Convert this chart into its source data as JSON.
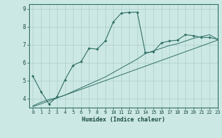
{
  "xlabel": "Humidex (Indice chaleur)",
  "background_color": "#cce8e4",
  "line_color": "#2e6e64",
  "grid_color": "#aacccc",
  "line1_x": [
    0,
    1,
    2,
    3,
    4,
    5,
    6,
    7,
    8,
    9,
    10,
    11,
    12,
    13,
    14,
    15,
    16,
    17,
    18,
    19,
    20,
    21,
    22,
    23
  ],
  "line1_y": [
    5.25,
    4.4,
    3.7,
    4.1,
    5.05,
    5.85,
    6.05,
    6.8,
    6.75,
    7.2,
    8.25,
    8.75,
    8.8,
    8.8,
    6.55,
    6.6,
    7.1,
    7.2,
    7.25,
    7.55,
    7.5,
    7.4,
    7.4,
    7.3
  ],
  "line2_x": [
    0,
    1,
    2,
    3,
    4,
    5,
    6,
    7,
    8,
    9,
    10,
    11,
    12,
    13,
    14,
    15,
    16,
    17,
    18,
    19,
    20,
    21,
    22,
    23
  ],
  "line2_y": [
    3.6,
    3.8,
    3.95,
    4.05,
    4.2,
    4.4,
    4.6,
    4.8,
    5.0,
    5.2,
    5.45,
    5.7,
    5.95,
    6.2,
    6.5,
    6.65,
    6.8,
    6.95,
    7.05,
    7.2,
    7.35,
    7.45,
    7.55,
    7.3
  ],
  "line3_x": [
    0,
    23
  ],
  "line3_y": [
    3.55,
    7.25
  ],
  "ylim": [
    3.5,
    9.25
  ],
  "xlim": [
    -0.5,
    23
  ],
  "yticks": [
    4,
    5,
    6,
    7,
    8,
    9
  ],
  "xticks": [
    0,
    1,
    2,
    3,
    4,
    5,
    6,
    7,
    8,
    9,
    10,
    11,
    12,
    13,
    14,
    15,
    16,
    17,
    18,
    19,
    20,
    21,
    22,
    23
  ]
}
